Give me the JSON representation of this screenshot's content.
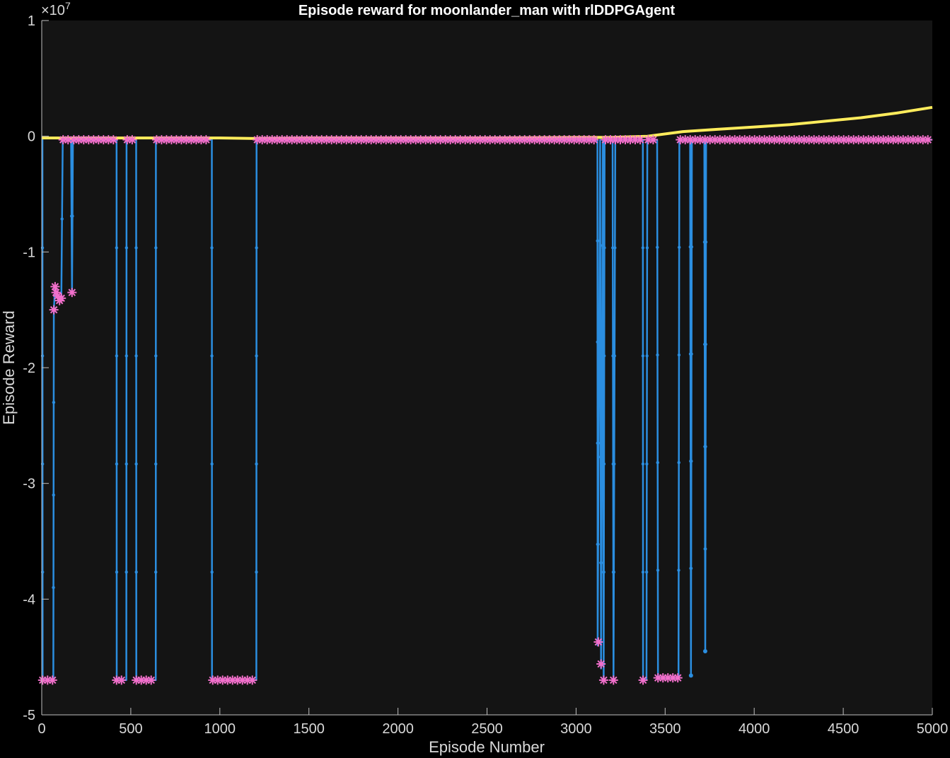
{
  "chart_data": {
    "type": "line",
    "title": "Episode reward for moonlander_man with rlDDPGAgent",
    "xlabel": "Episode Number",
    "ylabel": "Episode Reward",
    "xlim": [
      0,
      5000
    ],
    "ylim": [
      -5,
      1
    ],
    "y_exponent_label": "×10",
    "y_exponent_power": "7",
    "xticks": [
      0,
      500,
      1000,
      1500,
      2000,
      2500,
      3000,
      3500,
      4000,
      4500,
      5000
    ],
    "yticks": [
      -5,
      -4,
      -3,
      -2,
      -1,
      0,
      1
    ],
    "grid": false,
    "colors": {
      "background": "#000000",
      "axes_bg": "#141414",
      "axis": "#bfbfbf",
      "episode_reward": "#2b8ee0",
      "average_reward": "#ffec5c",
      "episode_q0": "#f26fcb"
    },
    "series": [
      {
        "key": "episode_reward",
        "style": "line-dot",
        "description_note": "",
        "segments": [
          [
            [
              0,
              -0.03
            ],
            [
              4,
              -0.03
            ],
            [
              5,
              -4.7
            ],
            [
              65,
              -4.7
            ],
            [
              68,
              -1.5
            ],
            [
              75,
              -1.3
            ],
            [
              90,
              -1.4
            ],
            [
              110,
              -1.4
            ],
            [
              118,
              -0.03
            ],
            [
              165,
              -0.03
            ],
            [
              170,
              -1.35
            ],
            [
              175,
              -0.03
            ],
            [
              420,
              -0.03
            ],
            [
              421,
              -4.7
            ],
            [
              475,
              -4.7
            ],
            [
              476,
              -0.03
            ],
            [
              530,
              -0.03
            ],
            [
              531,
              -4.7
            ],
            [
              640,
              -4.7
            ],
            [
              641,
              -0.03
            ],
            [
              955,
              -0.03
            ],
            [
              956,
              -4.7
            ],
            [
              1205,
              -4.7
            ],
            [
              1206,
              -0.03
            ],
            [
              3120,
              -0.03
            ],
            [
              3121,
              -4.4
            ],
            [
              3135,
              -0.03
            ],
            [
              3140,
              -4.6
            ],
            [
              3150,
              -0.03
            ],
            [
              3155,
              -4.7
            ],
            [
              3160,
              -0.03
            ],
            [
              3205,
              -0.03
            ],
            [
              3210,
              -4.7
            ],
            [
              3220,
              -0.03
            ],
            [
              3375,
              -0.03
            ],
            [
              3376,
              -4.7
            ],
            [
              3395,
              -4.7
            ],
            [
              3400,
              -0.03
            ],
            [
              3455,
              -0.03
            ],
            [
              3460,
              -4.68
            ],
            [
              3575,
              -4.68
            ],
            [
              3580,
              -0.03
            ],
            [
              3640,
              -0.03
            ],
            [
              3645,
              -4.66
            ],
            [
              3650,
              -0.03
            ],
            [
              3720,
              -0.03
            ],
            [
              3725,
              -4.45
            ],
            [
              3730,
              -0.03
            ],
            [
              5000,
              -0.03
            ]
          ]
        ]
      },
      {
        "key": "average_reward",
        "style": "line",
        "points": [
          [
            0,
            -0.015
          ],
          [
            500,
            -0.015
          ],
          [
            1000,
            -0.015
          ],
          [
            1200,
            -0.02
          ],
          [
            1500,
            -0.015
          ],
          [
            2000,
            -0.015
          ],
          [
            2500,
            -0.015
          ],
          [
            3000,
            -0.01
          ],
          [
            3200,
            -0.01
          ],
          [
            3400,
            0.0
          ],
          [
            3600,
            0.04
          ],
          [
            3800,
            0.06
          ],
          [
            4000,
            0.08
          ],
          [
            4200,
            0.1
          ],
          [
            4400,
            0.13
          ],
          [
            4600,
            0.16
          ],
          [
            4800,
            0.2
          ],
          [
            5000,
            0.25
          ]
        ]
      },
      {
        "key": "episode_q0",
        "style": "markers-star",
        "groups": [
          {
            "from": 5,
            "to": 65,
            "y": -4.7
          },
          {
            "from": 120,
            "to": 160,
            "y": -0.03
          },
          {
            "from": 180,
            "to": 410,
            "y": -0.03
          },
          {
            "from": 420,
            "to": 470,
            "y": -4.7
          },
          {
            "from": 480,
            "to": 525,
            "y": -0.03
          },
          {
            "from": 531,
            "to": 640,
            "y": -4.7
          },
          {
            "from": 645,
            "to": 950,
            "y": -0.03
          },
          {
            "from": 960,
            "to": 1205,
            "y": -4.7
          },
          {
            "from": 1210,
            "to": 3115,
            "y": -0.03
          },
          {
            "from": 3165,
            "to": 3370,
            "y": -0.03
          },
          {
            "from": 3376,
            "to": 3395,
            "y": -4.7
          },
          {
            "from": 3405,
            "to": 3450,
            "y": -0.03
          },
          {
            "from": 3460,
            "to": 3575,
            "y": -4.68
          },
          {
            "from": 3585,
            "to": 5000,
            "y": -0.03
          }
        ],
        "singles": [
          [
            68,
            -1.5
          ],
          [
            75,
            -1.3
          ],
          [
            80,
            -1.35
          ],
          [
            90,
            -1.38
          ],
          [
            100,
            -1.42
          ],
          [
            110,
            -1.4
          ],
          [
            170,
            -1.35
          ],
          [
            3125,
            -4.37
          ],
          [
            3140,
            -4.56
          ],
          [
            3155,
            -4.7
          ],
          [
            3210,
            -4.7
          ]
        ]
      }
    ]
  }
}
